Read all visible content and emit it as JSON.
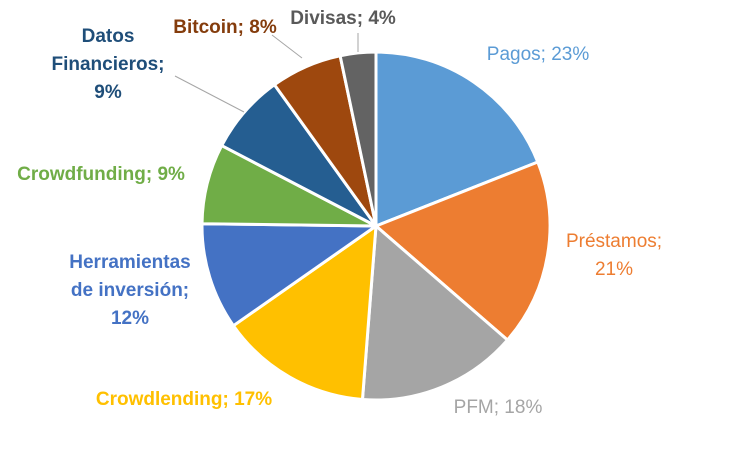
{
  "chart_data": {
    "type": "pie",
    "title": "",
    "slices": [
      {
        "label": "Pagos",
        "value": 23,
        "color": "#5b9bd5",
        "text": [
          "Pagos; 23%"
        ],
        "label_color": "#5b9bd5"
      },
      {
        "label": "Préstamos",
        "value": 21,
        "color": "#ed7d31",
        "text": [
          "Préstamos;",
          "21%"
        ],
        "label_color": "#ed7d31"
      },
      {
        "label": "PFM",
        "value": 18,
        "color": "#a5a5a5",
        "text": [
          "PFM; 18%"
        ],
        "label_color": "#a5a5a5"
      },
      {
        "label": "Crowdlending",
        "value": 17,
        "color": "#ffc000",
        "text": [
          "Crowdlending; 17%"
        ],
        "label_color": "#ffc000"
      },
      {
        "label": "Herramientas de inversión",
        "value": 12,
        "color": "#4472c4",
        "text": [
          "Herramientas",
          "de inversión;",
          "12%"
        ],
        "label_color": "#4472c4"
      },
      {
        "label": "Crowdfunding",
        "value": 9,
        "color": "#70ad47",
        "text": [
          "Crowdfunding; 9%"
        ],
        "label_color": "#70ad47"
      },
      {
        "label": "Datos Financieros",
        "value": 9,
        "color": "#255e91",
        "text": [
          "Datos",
          "Financieros;",
          "9%"
        ],
        "label_color": "#1f4e79"
      },
      {
        "label": "Bitcoin",
        "value": 8,
        "color": "#9e480e",
        "text": [
          "Bitcoin; 8%"
        ],
        "label_color": "#843c0c"
      },
      {
        "label": "Divisas",
        "value": 4,
        "color": "#636363",
        "text": [
          "Divisas; 4%"
        ],
        "label_color": "#595959"
      }
    ],
    "legend": "none"
  }
}
